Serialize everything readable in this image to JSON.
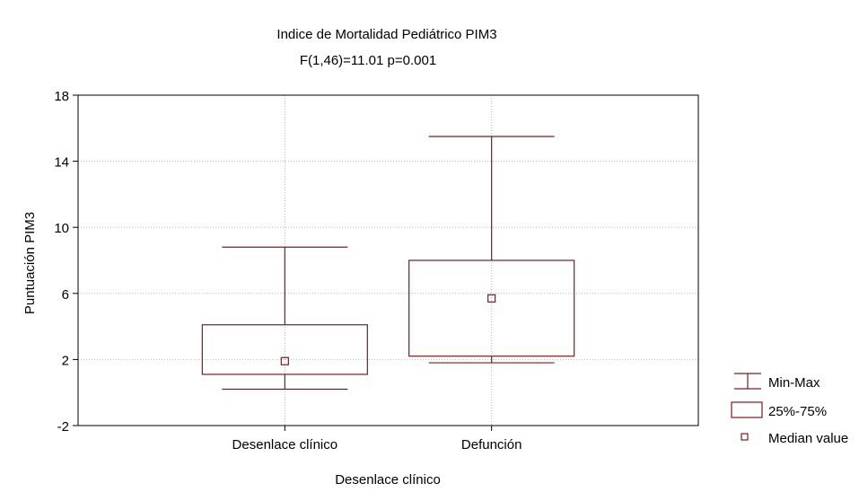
{
  "chart_data": {
    "type": "boxplot",
    "title": "Indice de Mortalidad Pediátrico PIM3",
    "subtitle": "F(1,46)=11.01 p=0.001",
    "xlabel": "Desenlace clínico",
    "ylabel": "Puntuación PIM3",
    "ylim": [
      -2,
      18
    ],
    "yticks": [
      -2,
      2,
      6,
      10,
      14,
      18
    ],
    "grid": true,
    "legend_position": "right-bottom",
    "color": "#7b1c1c",
    "categories": [
      "Desenlace clínico",
      "Defunción"
    ],
    "boxes": [
      {
        "category": "Desenlace clínico",
        "min": 0.2,
        "q1": 1.1,
        "median": 1.9,
        "q3": 4.1,
        "max": 8.8
      },
      {
        "category": "Defunción",
        "min": 1.8,
        "q1": 2.2,
        "median": 5.7,
        "q3": 8.0,
        "max": 15.5
      }
    ],
    "legend": [
      {
        "symbol": "whisker",
        "label": "Min-Max"
      },
      {
        "symbol": "box",
        "label": "25%-75%"
      },
      {
        "symbol": "point",
        "label": "Median value"
      }
    ]
  }
}
